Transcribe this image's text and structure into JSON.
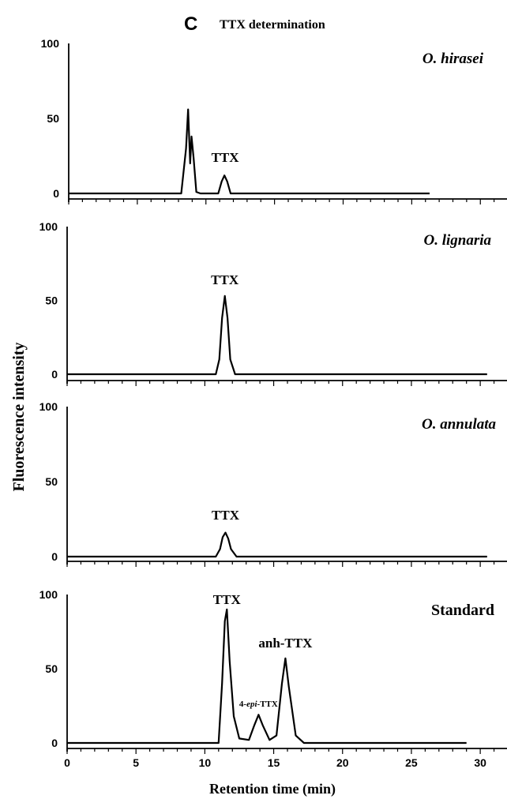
{
  "header": {
    "panel_letter": "C",
    "title": "TTX determination"
  },
  "chart_data": [
    {
      "type": "line",
      "title": "O. hirasei",
      "xlabel": "",
      "ylabel": "Fluorescence intensity",
      "xlim": [
        0,
        32
      ],
      "ylim": [
        0,
        100
      ],
      "yticks": [
        0,
        50,
        100
      ],
      "series": [
        {
          "x": [
            0,
            8.2,
            8.55,
            8.7,
            8.85,
            8.95,
            9.1,
            9.3,
            9.6,
            10.9,
            11.15,
            11.35,
            11.55,
            11.8,
            26.3
          ],
          "y": [
            0,
            0,
            30,
            56,
            20,
            38,
            24,
            1,
            0,
            0,
            8,
            12,
            8,
            0,
            0
          ]
        }
      ],
      "annotations": [
        {
          "text": "TTX",
          "x": 11.4
        }
      ]
    },
    {
      "type": "line",
      "title": "O. lignaria",
      "xlabel": "",
      "ylabel": "Fluorescence intensity",
      "xlim": [
        0,
        32
      ],
      "ylim": [
        0,
        100
      ],
      "yticks": [
        0,
        50,
        100
      ],
      "series": [
        {
          "x": [
            0,
            10.8,
            11.05,
            11.25,
            11.45,
            11.65,
            11.85,
            12.2,
            30.5
          ],
          "y": [
            0,
            0,
            10,
            38,
            53,
            38,
            10,
            0,
            0
          ]
        }
      ],
      "annotations": [
        {
          "text": "TTX",
          "x": 11.45
        }
      ]
    },
    {
      "type": "line",
      "title": "O. annulata",
      "xlabel": "",
      "ylabel": "Fluorescence intensity",
      "xlim": [
        0,
        32
      ],
      "ylim": [
        0,
        100
      ],
      "yticks": [
        0,
        50,
        100
      ],
      "series": [
        {
          "x": [
            0,
            10.8,
            11.1,
            11.3,
            11.5,
            11.7,
            11.9,
            12.3,
            30.5
          ],
          "y": [
            0,
            0,
            5,
            13,
            16,
            12,
            5,
            0,
            0
          ]
        }
      ],
      "annotations": [
        {
          "text": "TTX",
          "x": 11.5
        }
      ]
    },
    {
      "type": "line",
      "title": "Standard",
      "xlabel": "Retention time (min)",
      "ylabel": "Fluorescence intensity",
      "xlim": [
        0,
        32
      ],
      "ylim": [
        0,
        100
      ],
      "xticks": [
        0,
        5,
        10,
        15,
        20,
        25,
        30
      ],
      "yticks": [
        0,
        50,
        100
      ],
      "series": [
        {
          "x": [
            0,
            11.0,
            11.25,
            11.45,
            11.6,
            11.8,
            12.1,
            12.5,
            13.2,
            13.6,
            13.9,
            14.2,
            14.7,
            15.2,
            15.6,
            15.85,
            16.1,
            16.6,
            17.2,
            29.0
          ],
          "y": [
            0,
            0,
            40,
            82,
            90,
            55,
            18,
            3,
            2,
            12,
            19,
            12,
            2,
            5,
            40,
            57,
            38,
            5,
            0,
            0
          ]
        }
      ],
      "annotations": [
        {
          "text": "TTX",
          "x": 11.6
        },
        {
          "text_parts": [
            "4-",
            "epi",
            "-TTX"
          ],
          "x": 13.9
        },
        {
          "text": "anh-TTX",
          "x": 15.85
        }
      ]
    }
  ]
}
